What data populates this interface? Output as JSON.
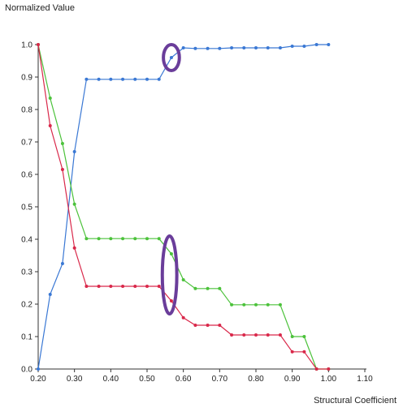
{
  "chart_data": {
    "type": "line",
    "ylabel": "Normalized Value",
    "xlabel": "Structural Coefficient",
    "xlim": [
      0.2,
      1.1
    ],
    "ylim": [
      0.0,
      1.0
    ],
    "x_ticks": [
      "0.20",
      "0.30",
      "0.40",
      "0.50",
      "0.60",
      "0.70",
      "0.80",
      "0.90",
      "1.00",
      "1.10"
    ],
    "y_ticks": [
      "0.0",
      "0.1",
      "0.2",
      "0.3",
      "0.4",
      "0.5",
      "0.6",
      "0.7",
      "0.8",
      "0.9",
      "1.0"
    ],
    "grid": false,
    "series": [
      {
        "color": "#3a78d4",
        "x": [
          0.2,
          0.233,
          0.267,
          0.3,
          0.333,
          0.367,
          0.4,
          0.433,
          0.467,
          0.5,
          0.533,
          0.567,
          0.6,
          0.633,
          0.667,
          0.7,
          0.733,
          0.767,
          0.8,
          0.833,
          0.867,
          0.9,
          0.933,
          0.967,
          1.0
        ],
        "values": [
          0.0,
          0.23,
          0.325,
          0.67,
          0.893,
          0.893,
          0.893,
          0.893,
          0.893,
          0.893,
          0.893,
          0.96,
          0.99,
          0.988,
          0.988,
          0.988,
          0.99,
          0.99,
          0.99,
          0.99,
          0.99,
          0.995,
          0.995,
          1.0,
          1.0
        ]
      },
      {
        "color": "#4cc23b",
        "x": [
          0.2,
          0.233,
          0.267,
          0.3,
          0.333,
          0.367,
          0.4,
          0.433,
          0.467,
          0.5,
          0.533,
          0.567,
          0.6,
          0.633,
          0.667,
          0.7,
          0.733,
          0.767,
          0.8,
          0.833,
          0.867,
          0.9,
          0.933,
          0.967,
          1.0
        ],
        "values": [
          1.0,
          0.835,
          0.695,
          0.508,
          0.402,
          0.402,
          0.402,
          0.402,
          0.402,
          0.402,
          0.402,
          0.355,
          0.275,
          0.248,
          0.248,
          0.248,
          0.198,
          0.198,
          0.198,
          0.198,
          0.198,
          0.1,
          0.1,
          0.0,
          0.0
        ]
      },
      {
        "color": "#d9284a",
        "x": [
          0.2,
          0.233,
          0.267,
          0.3,
          0.333,
          0.367,
          0.4,
          0.433,
          0.467,
          0.5,
          0.533,
          0.567,
          0.6,
          0.633,
          0.667,
          0.7,
          0.733,
          0.767,
          0.8,
          0.833,
          0.867,
          0.9,
          0.933,
          0.967,
          1.0
        ],
        "values": [
          1.0,
          0.75,
          0.615,
          0.373,
          0.255,
          0.255,
          0.255,
          0.255,
          0.255,
          0.255,
          0.255,
          0.21,
          0.158,
          0.135,
          0.135,
          0.135,
          0.105,
          0.105,
          0.105,
          0.105,
          0.105,
          0.053,
          0.053,
          0.0,
          0.0
        ]
      }
    ],
    "annotations": [
      {
        "type": "ellipse-highlight",
        "color": "#6a3d9a",
        "x": 0.567,
        "y": 0.96,
        "rx_data": 0.022,
        "ry_data": 0.04
      },
      {
        "type": "ellipse-highlight",
        "color": "#6a3d9a",
        "x": 0.562,
        "y": 0.29,
        "rx_data": 0.02,
        "ry_data": 0.12
      }
    ]
  }
}
